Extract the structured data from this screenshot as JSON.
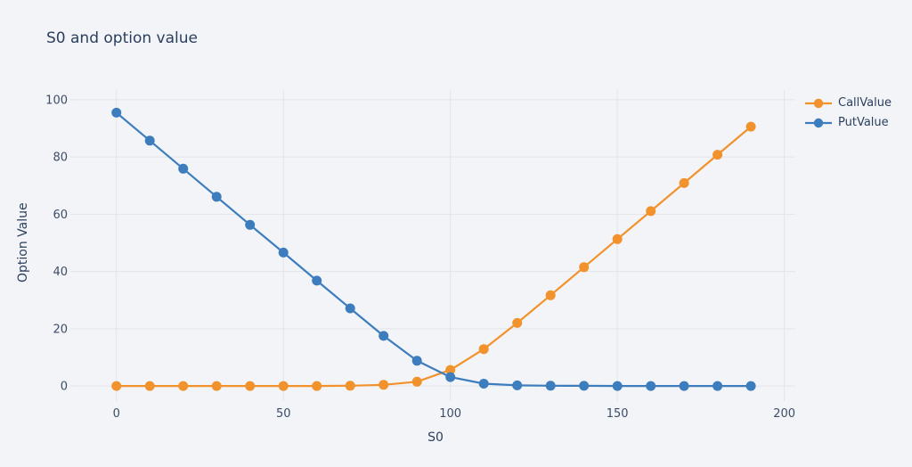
{
  "page": {
    "background_color": "#f3f4f7",
    "text_color": "#2a3f5f",
    "tick_label_color": "#3c4d67",
    "grid_color": "#e2e4e8"
  },
  "chart_data": {
    "type": "line",
    "title": "S0 and option value",
    "xlabel": "S0",
    "ylabel": "Option Value",
    "x": [
      0,
      10,
      20,
      30,
      40,
      50,
      60,
      70,
      80,
      90,
      100,
      110,
      120,
      130,
      140,
      150,
      160,
      170,
      180,
      190
    ],
    "series": [
      {
        "name": "CallValue",
        "color": "#f2922c",
        "values": [
          0,
          0,
          0,
          0,
          0,
          0,
          0,
          0.1,
          0.4,
          1.5,
          5.6,
          12.9,
          22.0,
          31.7,
          41.5,
          51.3,
          61.1,
          70.9,
          80.8,
          90.6
        ]
      },
      {
        "name": "PutValue",
        "color": "#3d7dbd",
        "values": [
          95.5,
          85.7,
          75.9,
          66.1,
          56.3,
          46.6,
          36.8,
          27.1,
          17.5,
          8.8,
          3.1,
          0.8,
          0.2,
          0.1,
          0.05,
          0,
          0,
          0,
          0,
          0
        ]
      }
    ],
    "xticks": [
      0,
      50,
      100,
      150,
      200
    ],
    "yticks": [
      0,
      20,
      40,
      60,
      80,
      100
    ],
    "xrange": [
      -12.2,
      203.3
    ],
    "yrange": [
      -3.4,
      103.4
    ],
    "grid": true,
    "legend_position": "top-right",
    "marker_radius": 5.5,
    "line_width": 2.2
  }
}
